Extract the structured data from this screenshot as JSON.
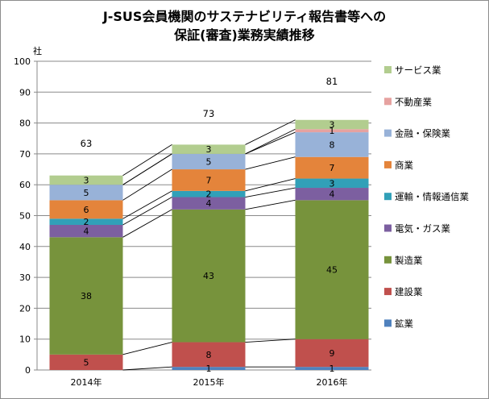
{
  "chart_data": {
    "type": "bar",
    "stacked": true,
    "title_line1": "J-SUS会員機関のサステナビリティ報告書等への",
    "title_line2": "保証(審査)業務実績推移",
    "ylabel": "社",
    "ylim": [
      0,
      100
    ],
    "yticks": [
      0,
      10,
      20,
      30,
      40,
      50,
      60,
      70,
      80,
      90,
      100
    ],
    "categories": [
      "2014年",
      "2015年",
      "2016年"
    ],
    "totals": [
      63,
      73,
      81
    ],
    "series": [
      {
        "name": "鉱業",
        "color": "#4f81bd",
        "values": [
          0,
          1,
          1
        ],
        "labels": [
          "",
          "1",
          "1"
        ]
      },
      {
        "name": "建設業",
        "color": "#c0504d",
        "values": [
          5,
          8,
          9
        ],
        "labels": [
          "5",
          "8",
          "9"
        ]
      },
      {
        "name": "製造業",
        "color": "#77933c",
        "values": [
          38,
          43,
          45
        ],
        "labels": [
          "38",
          "43",
          "45"
        ]
      },
      {
        "name": "電気・ガス業",
        "color": "#7c5fa0",
        "values": [
          4,
          4,
          4
        ],
        "labels": [
          "4",
          "4",
          "4"
        ]
      },
      {
        "name": "運輸・情報通信業",
        "color": "#31a0b8",
        "values": [
          2,
          2,
          3
        ],
        "labels": [
          "2",
          "2",
          "3"
        ]
      },
      {
        "name": "商業",
        "color": "#e4843b",
        "values": [
          6,
          7,
          7
        ],
        "labels": [
          "6",
          "7",
          "7"
        ]
      },
      {
        "name": "金融・保険業",
        "color": "#98b2d8",
        "values": [
          5,
          5,
          8
        ],
        "labels": [
          "5",
          "5",
          "8"
        ]
      },
      {
        "name": "不動産業",
        "color": "#e6a2a0",
        "values": [
          0,
          0,
          1
        ],
        "labels": [
          "",
          "",
          "1"
        ]
      },
      {
        "name": "サービス業",
        "color": "#b2cd8f",
        "values": [
          3,
          3,
          3
        ],
        "labels": [
          "3",
          "3",
          "3"
        ]
      }
    ],
    "grid": true,
    "legend_position": "right"
  }
}
